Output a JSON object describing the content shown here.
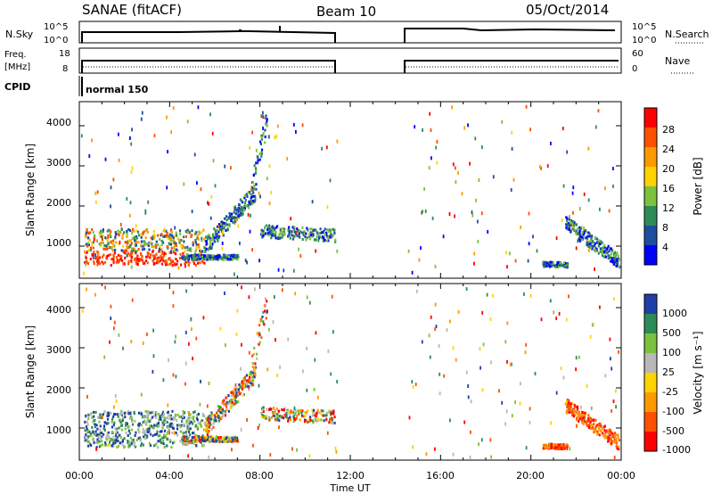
{
  "header": {
    "radar": "SANAE (fitACF)",
    "beam": "Beam 10",
    "date": "05/Oct/2014"
  },
  "params": {
    "nsky_label": "N.Sky",
    "nsky_ticks": [
      "10^5",
      "10^0"
    ],
    "nsearch_label": "N.Search",
    "freq_label": "Freq.",
    "freq_unit": "[MHz]",
    "freq_ticks": [
      "18",
      "8"
    ],
    "nave_label": "Nave",
    "nave_ticks": [
      "60",
      "0"
    ],
    "cpid_label": "CPID",
    "cpid_value": "normal 150"
  },
  "colors": {
    "power": [
      "#0000ff",
      "#1f4ea0",
      "#2e8b57",
      "#7cc23c",
      "#ffd300",
      "#ff9900",
      "#ff5000",
      "#ff0000"
    ],
    "velocity": [
      "#1f3fa8",
      "#2e8b57",
      "#7cc23c",
      "#b8b8b8",
      "#ffd300",
      "#ff9900",
      "#ff5000",
      "#ff0000"
    ]
  },
  "chart_data": [
    {
      "type": "heatmap",
      "name": "power",
      "ylabel": "Slant Range [km]",
      "xlabel": "",
      "yticks": [
        "1000",
        "2000",
        "3000",
        "4000"
      ],
      "ylim": [
        200,
        4600
      ],
      "xlim": [
        0,
        24
      ],
      "colorbar_label": "Power [dB]",
      "colorbar_ticks": [
        "4",
        "8",
        "12",
        "16",
        "20",
        "24",
        "28"
      ],
      "clim": [
        0,
        32
      ]
    },
    {
      "type": "heatmap",
      "name": "velocity",
      "ylabel": "Slant Range [km]",
      "xlabel": "Time UT",
      "xticks": [
        "00:00",
        "04:00",
        "08:00",
        "12:00",
        "16:00",
        "20:00",
        "00:00"
      ],
      "yticks": [
        "1000",
        "2000",
        "3000",
        "4000"
      ],
      "ylim": [
        200,
        4600
      ],
      "xlim": [
        0,
        24
      ],
      "colorbar_label": "Velocity [m s⁻¹]",
      "colorbar_ticks": [
        "1000",
        "500",
        "100",
        "25",
        "-25",
        "-100",
        "-500",
        "-1000"
      ]
    }
  ]
}
